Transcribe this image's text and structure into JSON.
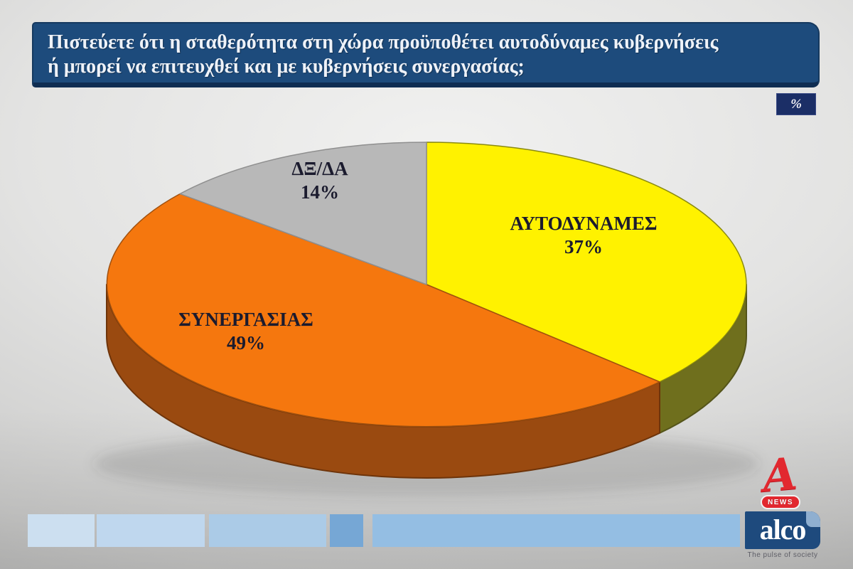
{
  "header": {
    "question_line1": "Πιστεύετε ότι η σταθερότητα στη χώρα προϋποθέτει αυτοδύναμες κυβερνήσεις",
    "question_line2": "ή μπορεί να επιτευχθεί και με κυβερνήσεις συνεργασίας;",
    "box_color": "#1d4b7c"
  },
  "badge": {
    "label": "%",
    "color": "#1b2e66"
  },
  "chart_data": {
    "type": "pie",
    "style": "3d",
    "start": "top",
    "direction": "clockwise",
    "title": "Πιστεύετε ότι η σταθερότητα στη χώρα προϋποθέτει αυτοδύναμες κυβερνήσεις ή μπορεί να επιτευχθεί και με κυβερνήσεις συνεργασίας;",
    "unit": "%",
    "categories": [
      "ΑΥΤΟΔΥΝΑΜΕΣ",
      "ΣΥΝΕΡΓΑΣΙΑΣ",
      "ΔΞ/ΔΑ"
    ],
    "values": [
      37,
      49,
      14
    ],
    "slices": [
      {
        "key": "aftodynames",
        "label": "ΑΥΤΟΔΥΝΑΜΕΣ",
        "value": 37,
        "pct_text": "37%",
        "color": "#FFF200",
        "stroke": "#8a8a10",
        "side_color": "#6F6F1D",
        "side_stroke": "#54541a"
      },
      {
        "key": "synergasias",
        "label": "ΣΥΝΕΡΓΑΣΙΑΣ",
        "value": 49,
        "pct_text": "49%",
        "color": "#F5770E",
        "stroke": "#a0500e",
        "side_color": "#9A4A10",
        "side_stroke": "#6e340a"
      },
      {
        "key": "dx-da",
        "label": "ΔΞ/ΔΑ",
        "value": 14,
        "pct_text": "14%",
        "color": "#B8B8B8",
        "stroke": "#8f8f8f",
        "side_color": "#9a9a9a",
        "side_stroke": "#888888"
      }
    ]
  },
  "footer": {
    "segments": [
      {
        "color": "#ccdff0"
      },
      {
        "color": "#bfd7ee"
      },
      {
        "color": "#abcbe7"
      },
      {
        "color": "#76a7d5"
      },
      {
        "color": "#94bee3"
      }
    ]
  },
  "brand": {
    "alpha_letter": "A",
    "news": "NEWS",
    "alco": "alco",
    "tagline": "The pulse of society",
    "red": "#e2282f",
    "alco_blue": "#1e4a7d"
  }
}
